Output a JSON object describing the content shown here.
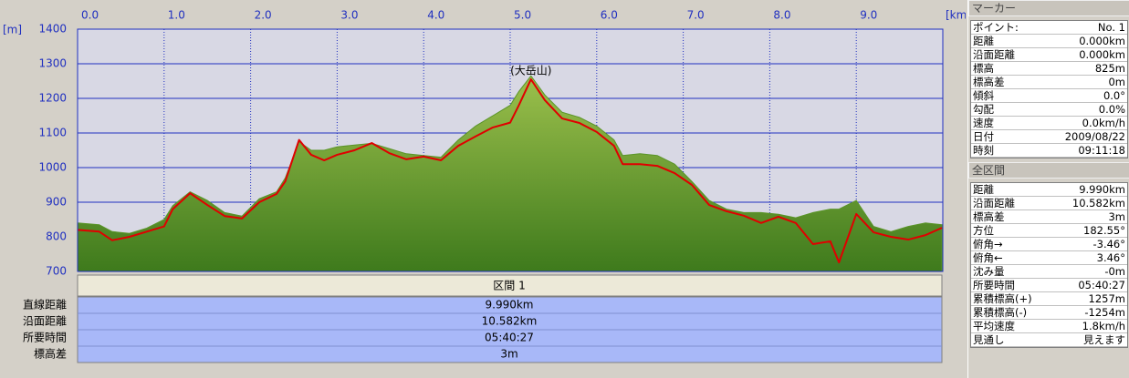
{
  "chart_data": {
    "type": "line",
    "x_unit": "[km]",
    "y_unit": "[m]",
    "xlim": [
      0,
      10
    ],
    "ylim": [
      700,
      1400
    ],
    "xticks": [
      {
        "value": 0,
        "label": "0.0"
      },
      {
        "value": 1,
        "label": "1.0"
      },
      {
        "value": 2,
        "label": "2.0"
      },
      {
        "value": 3,
        "label": "3.0"
      },
      {
        "value": 4,
        "label": "4.0"
      },
      {
        "value": 5,
        "label": "5.0"
      },
      {
        "value": 6,
        "label": "6.0"
      },
      {
        "value": 7,
        "label": "7.0"
      },
      {
        "value": 8,
        "label": "8.0"
      },
      {
        "value": 9,
        "label": "9.0"
      }
    ],
    "yticks": [
      700,
      800,
      900,
      1000,
      1100,
      1200,
      1300,
      1400
    ],
    "grid": true,
    "x": [
      0,
      0.25,
      0.4,
      0.6,
      0.8,
      1.0,
      1.1,
      1.3,
      1.5,
      1.7,
      1.9,
      2.1,
      2.3,
      2.4,
      2.56,
      2.7,
      2.85,
      3.0,
      3.2,
      3.4,
      3.6,
      3.8,
      4.0,
      4.2,
      4.4,
      4.6,
      4.8,
      5.0,
      5.1,
      5.24,
      5.4,
      5.6,
      5.8,
      6.0,
      6.2,
      6.3,
      6.5,
      6.7,
      6.9,
      7.1,
      7.3,
      7.5,
      7.7,
      7.9,
      8.1,
      8.3,
      8.5,
      8.7,
      8.8,
      9.0,
      9.2,
      9.4,
      9.6,
      9.8,
      9.99
    ],
    "series": [
      {
        "kind": "area",
        "color": "#5a9428",
        "values": [
          840,
          835,
          815,
          810,
          825,
          850,
          890,
          930,
          905,
          870,
          860,
          910,
          930,
          970,
          1075,
          1050,
          1050,
          1060,
          1065,
          1070,
          1055,
          1040,
          1035,
          1030,
          1080,
          1120,
          1150,
          1180,
          1220,
          1265,
          1210,
          1160,
          1145,
          1120,
          1080,
          1035,
          1040,
          1035,
          1010,
          960,
          905,
          880,
          870,
          870,
          865,
          855,
          870,
          880,
          880,
          905,
          830,
          815,
          830,
          840,
          835
        ]
      },
      {
        "kind": "line",
        "color": "#e00000",
        "values": [
          820,
          815,
          790,
          800,
          815,
          830,
          880,
          926,
          892,
          860,
          853,
          900,
          924,
          960,
          1080,
          1037,
          1021,
          1037,
          1050,
          1071,
          1042,
          1024,
          1032,
          1021,
          1063,
          1090,
          1116,
          1130,
          1180,
          1255,
          1195,
          1142,
          1129,
          1103,
          1063,
          1010,
          1010,
          1005,
          984,
          950,
          892,
          874,
          861,
          840,
          858,
          840,
          779,
          787,
          726,
          866,
          813,
          800,
          792,
          805,
          826
        ]
      }
    ],
    "annotations": [
      {
        "text": "(大岳山)",
        "x": 5.24,
        "y": 1255
      }
    ]
  },
  "section": {
    "title": "区間 1",
    "rows": [
      [
        "直線距離",
        "9.990km"
      ],
      [
        "沿面距離",
        "10.582km"
      ],
      [
        "所要時間",
        "05:40:27"
      ],
      [
        "標高差",
        "3m"
      ]
    ]
  },
  "marker": {
    "title": "マーカー",
    "rows": [
      [
        "ポイント:",
        "No. 1"
      ],
      [
        "距離",
        "0.000km"
      ],
      [
        "沿面距離",
        "0.000km"
      ],
      [
        "標高",
        "825m"
      ],
      [
        "標高差",
        "0m"
      ],
      [
        "傾斜",
        "0.0°"
      ],
      [
        "勾配",
        "0.0%"
      ],
      [
        "速度",
        "0.0km/h"
      ],
      [
        "日付",
        "2009/08/22"
      ],
      [
        "時刻",
        "09:11:18"
      ]
    ]
  },
  "total": {
    "title": "全区間",
    "rows": [
      [
        "距離",
        "9.990km"
      ],
      [
        "沿面距離",
        "10.582km"
      ],
      [
        "標高差",
        "3m"
      ],
      [
        "方位",
        "182.55°"
      ],
      [
        "俯角→",
        "-3.46°"
      ],
      [
        "俯角←",
        "3.46°"
      ],
      [
        "沈み量",
        "-0m"
      ],
      [
        "所要時間",
        "05:40:27"
      ],
      [
        "累積標高(+)",
        "1257m"
      ],
      [
        "累積標高(-)",
        "-1254m"
      ],
      [
        "平均速度",
        "1.8km/h"
      ],
      [
        "見通し",
        "見えます"
      ]
    ]
  }
}
